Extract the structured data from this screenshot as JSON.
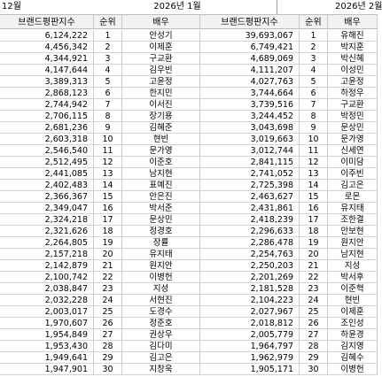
{
  "months": {
    "left": "12월",
    "center": "2026년 1월",
    "right": "2026년 2월"
  },
  "headers": {
    "index": "브랜드평판지수",
    "rank": "순위",
    "actor": "배우",
    "index2": "브랜드평판지수",
    "rank2": "순위",
    "actor2": "배우"
  },
  "rows": [
    {
      "prev_index": "6,124,222",
      "rank": "1",
      "actor": "안성기",
      "index": "39,693,067",
      "next_rank": "1",
      "next_actor": "유해진"
    },
    {
      "prev_index": "4,456,342",
      "rank": "2",
      "actor": "이제훈",
      "index": "6,749,421",
      "next_rank": "2",
      "next_actor": "박지훈"
    },
    {
      "prev_index": "4,344,921",
      "rank": "3",
      "actor": "구교환",
      "index": "4,689,069",
      "next_rank": "3",
      "next_actor": "박신혜"
    },
    {
      "prev_index": "4,147,644",
      "rank": "4",
      "actor": "김우빈",
      "index": "4,111,207",
      "next_rank": "4",
      "next_actor": "이성민"
    },
    {
      "prev_index": "3,389,313",
      "rank": "5",
      "actor": "고윤정",
      "index": "4,027,763",
      "next_rank": "5",
      "next_actor": "고윤정"
    },
    {
      "prev_index": "2,868,123",
      "rank": "6",
      "actor": "한지민",
      "index": "3,744,664",
      "next_rank": "6",
      "next_actor": "하정우"
    },
    {
      "prev_index": "2,744,942",
      "rank": "7",
      "actor": "이서진",
      "index": "3,739,516",
      "next_rank": "7",
      "next_actor": "구교환"
    },
    {
      "prev_index": "2,706,115",
      "rank": "8",
      "actor": "장기용",
      "index": "3,244,452",
      "next_rank": "8",
      "next_actor": "박정민"
    },
    {
      "prev_index": "2,681,236",
      "rank": "9",
      "actor": "김혜준",
      "index": "3,043,698",
      "next_rank": "9",
      "next_actor": "문상민"
    },
    {
      "prev_index": "2,603,318",
      "rank": "10",
      "actor": "현빈",
      "index": "3,019,663",
      "next_rank": "10",
      "next_actor": "문가영"
    },
    {
      "prev_index": "2,546,540",
      "rank": "11",
      "actor": "문가영",
      "index": "3,012,744",
      "next_rank": "11",
      "next_actor": "신세연"
    },
    {
      "prev_index": "2,512,495",
      "rank": "12",
      "actor": "이준호",
      "index": "2,841,115",
      "next_rank": "12",
      "next_actor": "이미담"
    },
    {
      "prev_index": "2,441,085",
      "rank": "13",
      "actor": "남지현",
      "index": "2,741,052",
      "next_rank": "13",
      "next_actor": "이주빈"
    },
    {
      "prev_index": "2,402,483",
      "rank": "14",
      "actor": "표예진",
      "index": "2,725,398",
      "next_rank": "14",
      "next_actor": "김고은"
    },
    {
      "prev_index": "2,366,367",
      "rank": "15",
      "actor": "안은진",
      "index": "2,463,627",
      "next_rank": "15",
      "next_actor": "로몬"
    },
    {
      "prev_index": "2,349,047",
      "rank": "16",
      "actor": "박서준",
      "index": "2,431,861",
      "next_rank": "16",
      "next_actor": "유지태"
    },
    {
      "prev_index": "2,324,218",
      "rank": "17",
      "actor": "문상민",
      "index": "2,418,239",
      "next_rank": "17",
      "next_actor": "조한결"
    },
    {
      "prev_index": "2,321,626",
      "rank": "18",
      "actor": "정경호",
      "index": "2,296,633",
      "next_rank": "18",
      "next_actor": "안보현"
    },
    {
      "prev_index": "2,264,805",
      "rank": "19",
      "actor": "장률",
      "index": "2,286,478",
      "next_rank": "19",
      "next_actor": "원지안"
    },
    {
      "prev_index": "2,157,218",
      "rank": "20",
      "actor": "유지태",
      "index": "2,254,763",
      "next_rank": "20",
      "next_actor": "남지현"
    },
    {
      "prev_index": "2,142,879",
      "rank": "21",
      "actor": "원지안",
      "index": "2,250,203",
      "next_rank": "21",
      "next_actor": "지성"
    },
    {
      "prev_index": "2,100,742",
      "rank": "22",
      "actor": "이병헌",
      "index": "2,201,269",
      "next_rank": "22",
      "next_actor": "박서후"
    },
    {
      "prev_index": "2,038,847",
      "rank": "23",
      "actor": "지성",
      "index": "2,181,528",
      "next_rank": "23",
      "next_actor": "이준혁"
    },
    {
      "prev_index": "2,032,228",
      "rank": "24",
      "actor": "서현진",
      "index": "2,104,223",
      "next_rank": "24",
      "next_actor": "현빈"
    },
    {
      "prev_index": "2,003,017",
      "rank": "25",
      "actor": "도경수",
      "index": "2,027,967",
      "next_rank": "25",
      "next_actor": "이제훈"
    },
    {
      "prev_index": "1,970,607",
      "rank": "26",
      "actor": "정준호",
      "index": "2,018,812",
      "next_rank": "26",
      "next_actor": "조인성"
    },
    {
      "prev_index": "1,954,849",
      "rank": "27",
      "actor": "권상우",
      "index": "2,005,779",
      "next_rank": "27",
      "next_actor": "하윤경"
    },
    {
      "prev_index": "1,953,430",
      "rank": "28",
      "actor": "김다미",
      "index": "1,964,797",
      "next_rank": "28",
      "next_actor": "김지영"
    },
    {
      "prev_index": "1,949,641",
      "rank": "29",
      "actor": "김고은",
      "index": "1,962,979",
      "next_rank": "29",
      "next_actor": "김혜수"
    },
    {
      "prev_index": "1,947,901",
      "rank": "30",
      "actor": "지창욱",
      "index": "1,905,171",
      "next_rank": "30",
      "next_actor": "이병헌"
    }
  ]
}
